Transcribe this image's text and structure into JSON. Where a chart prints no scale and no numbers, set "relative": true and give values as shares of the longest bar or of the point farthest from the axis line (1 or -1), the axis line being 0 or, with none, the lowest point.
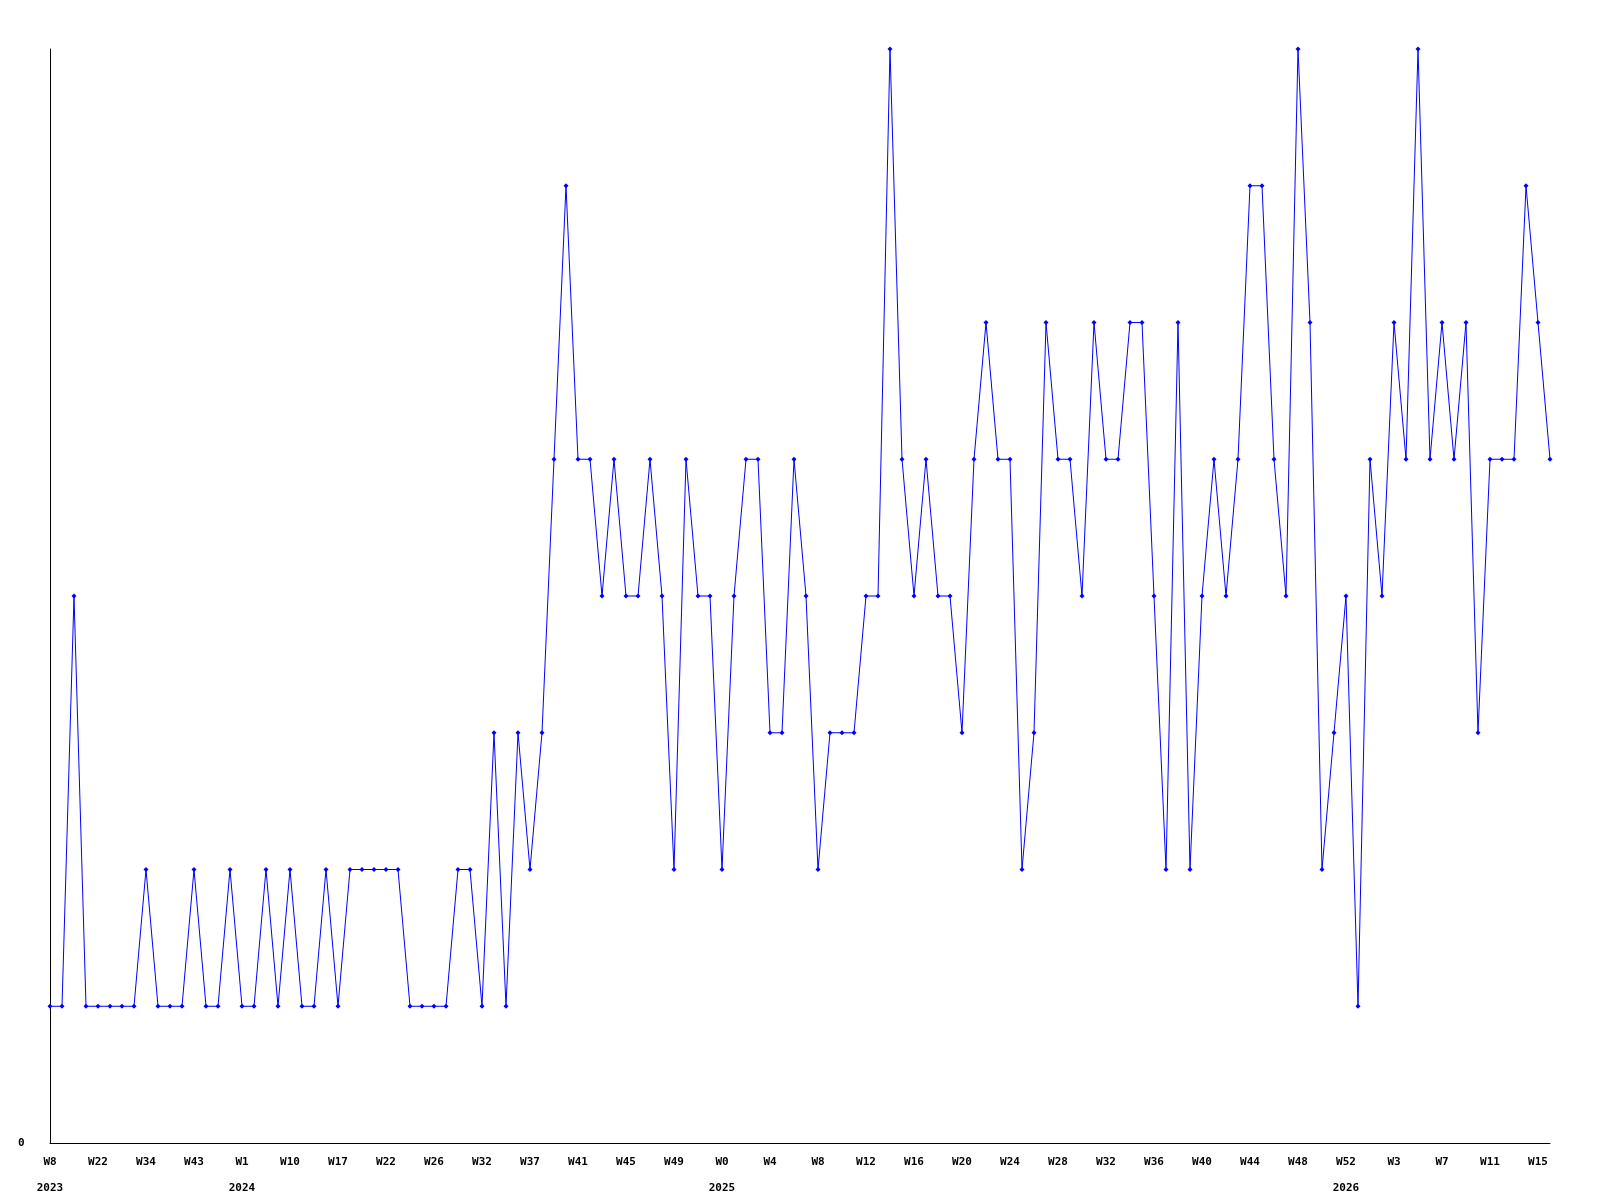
{
  "chart_data": {
    "type": "line",
    "relative": true,
    "marker": "diamond",
    "line_style": "solid",
    "grid": false,
    "annotations": [
      "0"
    ],
    "categories": [
      "W8\n2023",
      null,
      null,
      null,
      "W22",
      null,
      null,
      null,
      "W34",
      null,
      null,
      null,
      "W43",
      null,
      null,
      null,
      "W1\n2024",
      null,
      null,
      null,
      "W10",
      null,
      null,
      null,
      "W17",
      null,
      null,
      null,
      "W22",
      null,
      null,
      null,
      "W26",
      null,
      null,
      null,
      "W32",
      null,
      null,
      null,
      "W37",
      null,
      null,
      null,
      "W41",
      null,
      null,
      null,
      "W45",
      null,
      null,
      null,
      "W49",
      null,
      null,
      null,
      "W0\n2025",
      null,
      null,
      null,
      "W4",
      null,
      null,
      null,
      "W8",
      null,
      null,
      null,
      "W12",
      null,
      null,
      null,
      "W16",
      null,
      null,
      null,
      "W20",
      null,
      null,
      null,
      "W24",
      null,
      null,
      null,
      "W28",
      null,
      null,
      null,
      "W32",
      null,
      null,
      null,
      "W36",
      null,
      null,
      null,
      "W40",
      null,
      null,
      null,
      "W44",
      null,
      null,
      null,
      "W48",
      null,
      null,
      null,
      "W52\n2026",
      null,
      null,
      null,
      "W3",
      null,
      null,
      null,
      "W7",
      null,
      null,
      null,
      "W11",
      null,
      null,
      null,
      "W15",
      null
    ],
    "series": [
      {
        "color": "#0000ff",
        "values": [
          0.125,
          0.125,
          0.5,
          0.125,
          0.125,
          0.125,
          0.125,
          0.125,
          0.25,
          0.125,
          0.125,
          0.125,
          0.25,
          0.125,
          0.125,
          0.25,
          0.125,
          0.125,
          0.25,
          0.125,
          0.25,
          0.125,
          0.125,
          0.25,
          0.125,
          0.25,
          0.25,
          0.25,
          0.25,
          0.25,
          0.125,
          0.125,
          0.125,
          0.125,
          0.25,
          0.25,
          0.125,
          0.375,
          0.125,
          0.375,
          0.25,
          0.375,
          0.625,
          0.875,
          0.625,
          0.625,
          0.5,
          0.625,
          0.5,
          0.5,
          0.625,
          0.5,
          0.25,
          0.625,
          0.5,
          0.5,
          0.25,
          0.5,
          0.625,
          0.625,
          0.375,
          0.375,
          0.625,
          0.5,
          0.25,
          0.375,
          0.375,
          0.375,
          0.5,
          0.5,
          1,
          0.625,
          0.5,
          0.625,
          0.5,
          0.5,
          0.375,
          0.625,
          0.75,
          0.625,
          0.625,
          0.25,
          0.375,
          0.75,
          0.625,
          0.625,
          0.5,
          0.75,
          0.625,
          0.625,
          0.75,
          0.75,
          0.5,
          0.25,
          0.75,
          0.25,
          0.5,
          0.625,
          0.5,
          0.625,
          0.875,
          0.875,
          0.625,
          0.5,
          1,
          0.75,
          0.25,
          0.375,
          0.5,
          0.125,
          0.625,
          0.5,
          0.75,
          0.625,
          1,
          0.625,
          0.75,
          0.625,
          0.75,
          0.375,
          0.625,
          0.625,
          0.625,
          0.875,
          0.75,
          0.625
        ]
      }
    ]
  }
}
